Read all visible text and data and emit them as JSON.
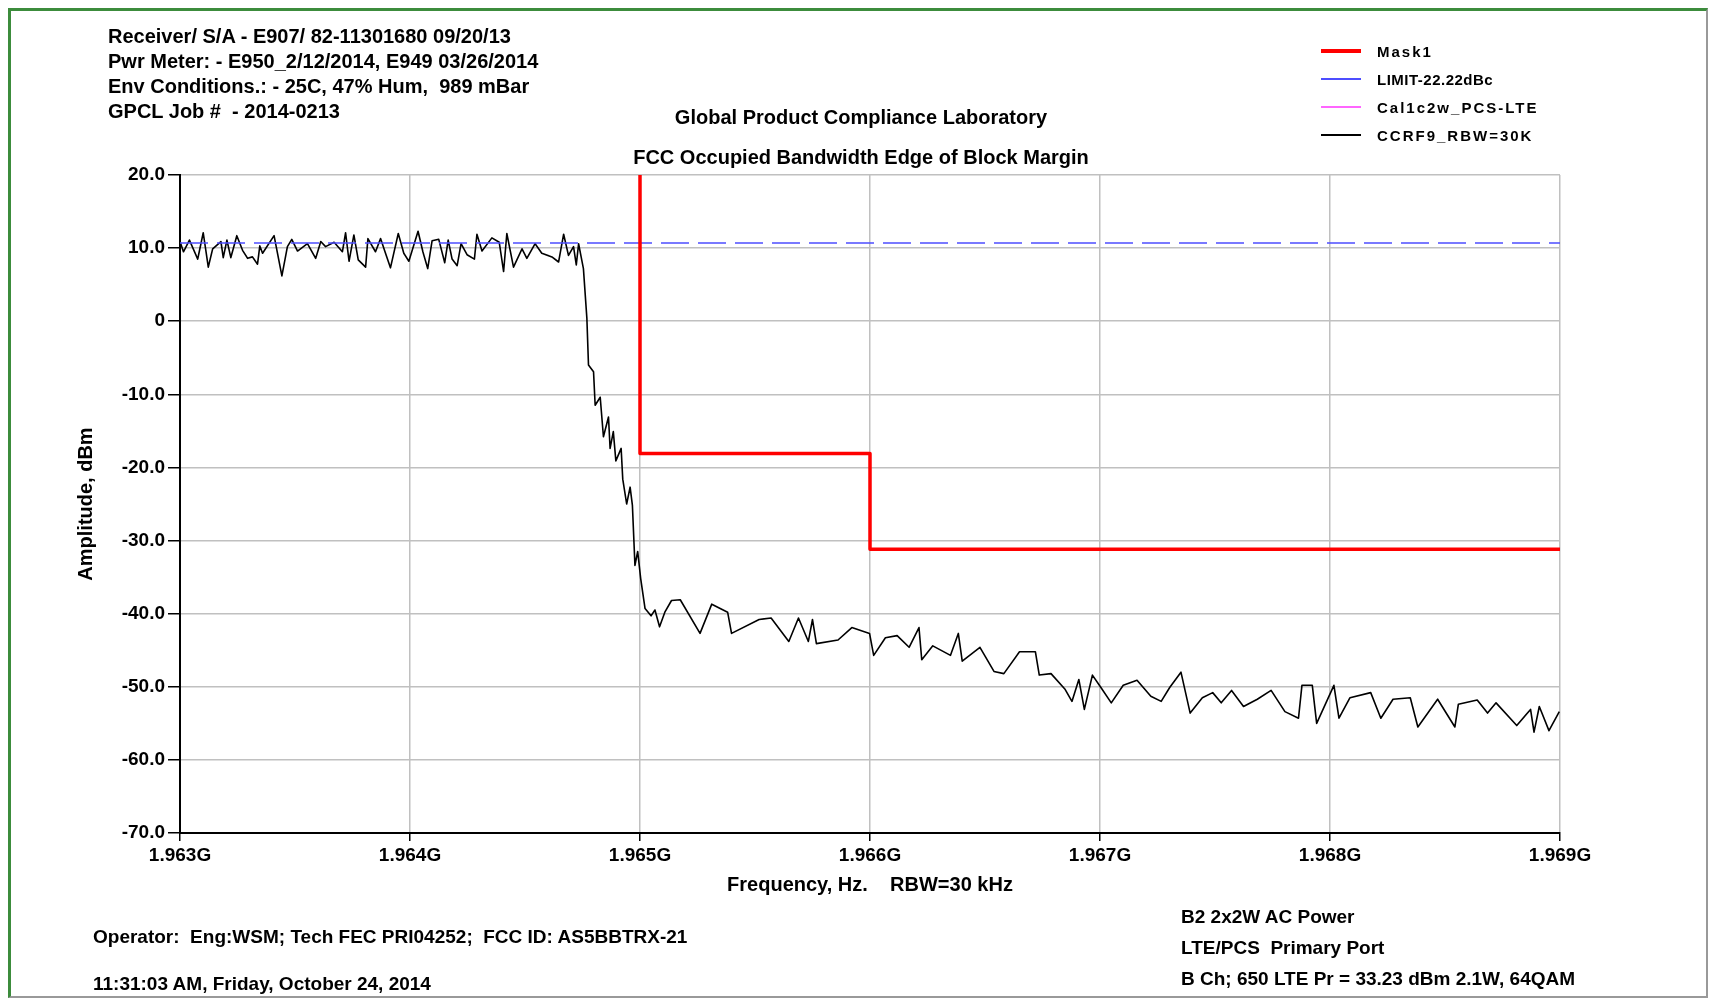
{
  "chart_data": {
    "type": "line",
    "title": "FCC Occupied Bandwidth Edge of Block Margin",
    "subtitle": "Global Product Compliance Laboratory",
    "xlabel": "Frequency, Hz.    RBW=30 kHz",
    "ylabel": "Amplitude, dBm",
    "annotations": [
      "Receiver/ S/A - E907/ 82-11301680 09/20/13",
      "Pwr Meter: - E950_2/12/2014, E949 03/26/2014",
      "Env Conditions.: - 25C, 47% Hum,  989 mBar",
      "GPCL Job #  - 2014-0213",
      "Operator:  Eng:WSM; Tech FEC PRI04252;  FCC ID: AS5BBTRX-21",
      "11:31:03 AM, Friday, October 24, 2014",
      "B2 2x2W AC Power",
      "LTE/PCS  Primary Port",
      "B Ch; 650 LTE Pr = 33.23 dBm 2.1W, 64QAM"
    ],
    "xlim": [
      1.963,
      1.969
    ],
    "xticks": [
      {
        "value": 1.963,
        "label": "1.963G"
      },
      {
        "value": 1.964,
        "label": "1.964G"
      },
      {
        "value": 1.965,
        "label": "1.965G"
      },
      {
        "value": 1.966,
        "label": "1.966G"
      },
      {
        "value": 1.967,
        "label": "1.967G"
      },
      {
        "value": 1.968,
        "label": "1.968G"
      },
      {
        "value": 1.969,
        "label": "1.969G"
      }
    ],
    "ylim": [
      -70,
      20
    ],
    "yticks": [
      {
        "value": -70,
        "label": "-70.0"
      },
      {
        "value": -60,
        "label": "-60.0"
      },
      {
        "value": -50,
        "label": "-50.0"
      },
      {
        "value": -40,
        "label": "-40.0"
      },
      {
        "value": -30,
        "label": "-30.0"
      },
      {
        "value": -20,
        "label": "-20.0"
      },
      {
        "value": -10,
        "label": "-10.0"
      },
      0,
      {
        "value": 10,
        "label": "10.0"
      },
      {
        "value": 20,
        "label": "20.0"
      }
    ],
    "grid": true,
    "legend": "top right",
    "marker": "none",
    "series": [
      {
        "name": "Mask1",
        "color": "#ff0000",
        "x": [
          1.965,
          1.965,
          1.966,
          1.966,
          1.969
        ],
        "values": [
          20,
          -18.1,
          -18.1,
          -31.2,
          -31.2
        ]
      },
      {
        "name": "LIMIT-22.22dBc",
        "color": "#4d4dff",
        "line_style": "dashed",
        "x": [
          1.963,
          1.969
        ],
        "values": [
          10.7,
          10.7
        ]
      },
      {
        "name": "Cal1c2w_PCS-LTE",
        "color": "#ff66ff"
      },
      {
        "name": "CCRF9_RBW=30K",
        "color": "#000000",
        "x": [
          1.963,
          1.963015,
          1.963041,
          1.963077,
          1.963101,
          1.963123,
          1.963142,
          1.963178,
          1.963188,
          1.963204,
          1.963221,
          1.963247,
          1.963272,
          1.963294,
          1.963315,
          1.963337,
          1.963347,
          1.963359,
          1.963409,
          1.963443,
          1.963467,
          1.963486,
          1.963511,
          1.963554,
          1.96359,
          1.963612,
          1.963633,
          1.96367,
          1.963706,
          1.96372,
          1.963735,
          1.963756,
          1.963775,
          1.963807,
          1.963817,
          1.96385,
          1.963872,
          1.963915,
          1.963949,
          1.963973,
          1.963995,
          1.964035,
          1.964056,
          1.964077,
          1.964096,
          1.964125,
          1.964151,
          1.964166,
          1.964183,
          1.964205,
          1.964222,
          1.964248,
          1.96428,
          1.964291,
          1.964313,
          1.964356,
          1.964388,
          1.964407,
          1.964421,
          1.96445,
          1.964487,
          1.964508,
          1.964544,
          1.964573,
          1.964617,
          1.964646,
          1.964668,
          1.964689,
          1.964711,
          1.964723,
          1.964733,
          1.964754,
          1.964769,
          1.964776,
          1.964798,
          1.964805,
          1.964827,
          1.964841,
          1.964863,
          1.96487,
          1.964884,
          1.964895,
          1.964918,
          1.964925,
          1.964942,
          1.964957,
          1.964967,
          1.964978,
          1.96499,
          1.965003,
          1.965022,
          1.965048,
          1.965065,
          1.965085,
          1.965108,
          1.965137,
          1.965175,
          1.965261,
          1.965312,
          1.965381,
          1.965398,
          1.965518,
          1.96557,
          1.965647,
          1.965689,
          1.965732,
          1.96575,
          1.965767,
          1.965861,
          1.965921,
          1.965998,
          1.966016,
          1.966067,
          1.966118,
          1.96617,
          1.966213,
          1.966225,
          1.966273,
          1.96635,
          1.966384,
          1.966401,
          1.966478,
          1.966539,
          1.966582,
          1.96665,
          1.966719,
          1.966736,
          1.966787,
          1.966847,
          1.966878,
          1.966908,
          1.966932,
          1.966967,
          1.967004,
          1.967049,
          1.967101,
          1.967161,
          1.967221,
          1.967266,
          1.967303,
          1.967352,
          1.967392,
          1.967445,
          1.96749,
          1.967527,
          1.967572,
          1.967624,
          1.967684,
          1.967744,
          1.967804,
          1.967863,
          1.967878,
          1.967923,
          1.967942,
          1.968017,
          1.968039,
          1.968087,
          1.968177,
          1.968221,
          1.968274,
          1.968349,
          1.968382,
          1.968468,
          1.968543,
          1.968558,
          1.96864,
          1.968685,
          1.968722,
          1.968812,
          1.968872,
          1.968887,
          1.96891,
          1.968952,
          1.968997
        ],
        "values": [
          10.9,
          9.5,
          11.1,
          8.5,
          12.1,
          7.4,
          9.9,
          10.9,
          8.7,
          11.1,
          8.7,
          11.7,
          9.7,
          8.6,
          8.8,
          7.8,
          10.3,
          9.3,
          11.7,
          6.2,
          10.2,
          11.2,
          9.6,
          10.6,
          8.6,
          10.9,
          10.2,
          10.8,
          9.5,
          12.1,
          8.2,
          11.8,
          8.4,
          7.4,
          11.3,
          9.5,
          11.3,
          7.3,
          12,
          9.3,
          8.2,
          12.3,
          9.5,
          7.2,
          11,
          11.2,
          8,
          11.1,
          8.5,
          7.6,
          10.6,
          9.1,
          8.5,
          11.9,
          9.6,
          11.4,
          10.8,
          6.8,
          12,
          7.4,
          9.9,
          8.6,
          10.6,
          9.3,
          8.8,
          8.1,
          11.9,
          9,
          10.2,
          7.7,
          10.6,
          7.2,
          0.4,
          -6,
          -6.9,
          -11.5,
          -10.4,
          -15.8,
          -13.1,
          -17.4,
          -15.1,
          -19.1,
          -17.4,
          -21.6,
          -25,
          -22.7,
          -25.2,
          -33.4,
          -31.5,
          -35.2,
          -39.3,
          -40.3,
          -39.5,
          -41.8,
          -39.8,
          -38.2,
          -38.1,
          -42.7,
          -38.7,
          -39.8,
          -42.7,
          -40.8,
          -40.6,
          -43.8,
          -40.6,
          -43.8,
          -40.8,
          -44.1,
          -43.6,
          -41.9,
          -42.7,
          -45.7,
          -43.3,
          -43,
          -44.6,
          -41.9,
          -46.3,
          -44.4,
          -45.7,
          -42.7,
          -46.5,
          -44.6,
          -47.9,
          -48.2,
          -45.2,
          -45.2,
          -48.4,
          -48.2,
          -50.3,
          -52,
          -49,
          -53.1,
          -48.4,
          -50.1,
          -52.2,
          -49.8,
          -49.1,
          -51.3,
          -52,
          -50.1,
          -48,
          -53.6,
          -51.5,
          -50.8,
          -52.2,
          -50.5,
          -52.7,
          -51.7,
          -50.5,
          -53.4,
          -54.3,
          -49.8,
          -49.8,
          -55,
          -49.8,
          -54.3,
          -51.5,
          -50.8,
          -54.3,
          -51.7,
          -51.5,
          -55.5,
          -51.7,
          -55.5,
          -52.4,
          -51.8,
          -53.6,
          -52.2,
          -55.3,
          -53.1,
          -56.2,
          -52.7,
          -56,
          -53.4
        ]
      }
    ]
  }
}
